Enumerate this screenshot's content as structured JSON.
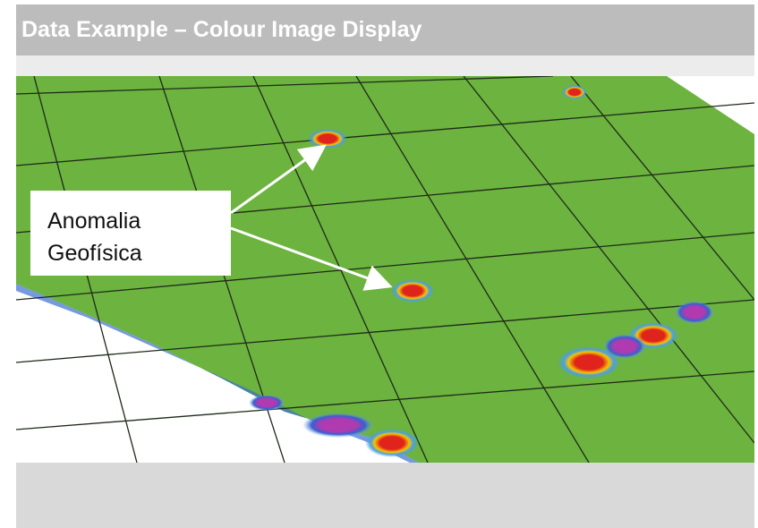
{
  "header": {
    "title": "Data Example – Colour Image Display"
  },
  "callout": {
    "lines": [
      "Anomalia",
      "Geofísica"
    ]
  }
}
